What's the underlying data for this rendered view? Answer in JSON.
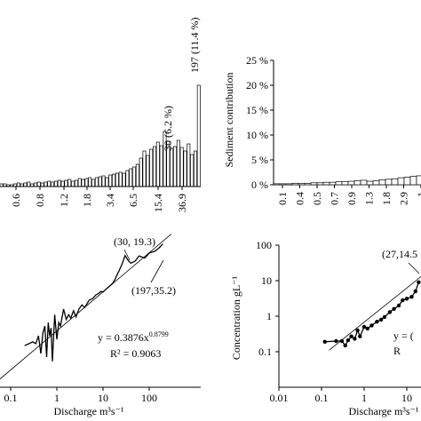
{
  "chart_data": [
    {
      "id": "a",
      "type": "bar",
      "x_tick_labels": [
        "0.6",
        "0.8",
        "1.2",
        "1.8",
        "3.4",
        "6.5",
        "15.4",
        "36.9"
      ],
      "peak_labels": [
        "30 (6.2 %)",
        "197 (11.4 %)"
      ],
      "values": [
        0.3,
        0.3,
        0.2,
        0.2,
        0.3,
        0.4,
        0.3,
        0.4,
        0.5,
        0.3,
        0.4,
        0.5,
        0.4,
        0.5,
        0.6,
        0.5,
        0.6,
        0.7,
        0.6,
        0.7,
        0.8,
        0.6,
        0.7,
        0.9,
        0.8,
        0.9,
        1.0,
        0.8,
        1.0,
        1.1,
        1.2,
        1.0,
        1.3,
        1.4,
        1.5,
        1.6,
        1.5,
        1.8,
        2.0,
        2.2,
        2.5,
        3.2,
        4.0,
        3.5,
        4.2,
        4.5,
        5.0,
        4.6,
        6.2,
        5.1,
        4.3,
        4.5,
        5.2,
        4.4,
        4.0,
        4.8,
        3.6,
        4.0,
        11.4
      ],
      "ylim": [
        0,
        12.5
      ]
    },
    {
      "id": "b",
      "type": "bar",
      "ylabel": "Sediment contribution",
      "y_tick_labels": [
        "0 %",
        "5 %",
        "10 %",
        "15 %",
        "20 %",
        "25 %"
      ],
      "x_tick_labels": [
        "0.1",
        "0.4",
        "0.5",
        "0.7",
        "0.9",
        "1.3",
        "1.8",
        "2.9",
        "1"
      ],
      "values": [
        0.2,
        0.2,
        0.2,
        0.3,
        0.3,
        0.3,
        0.4,
        0.4,
        0.5,
        0.5,
        0.6,
        0.6,
        0.7,
        0.8,
        0.9,
        0.7,
        0.8,
        1.0,
        1.1,
        1.2,
        1.4,
        1.5,
        1.7,
        1.8
      ],
      "ylim": [
        0,
        25
      ]
    },
    {
      "id": "c",
      "type": "line",
      "xlabel": "Discharge m³s⁻¹",
      "x_scale": "log",
      "y_scale": "log",
      "x_tick_labels": [
        "0.1",
        "1",
        "10",
        "100"
      ],
      "annotations": [
        "(30, 19.3)",
        "(197,35.2)"
      ],
      "equation": "y = 0.3876x",
      "equation_exponent": "0.8799",
      "r_squared": "R² = 0.9063",
      "fit": {
        "a": 0.3876,
        "b": 0.8799
      },
      "x": [
        0.2,
        0.25,
        0.3,
        0.35,
        0.4,
        0.45,
        0.5,
        0.55,
        0.6,
        0.65,
        0.7,
        0.75,
        0.8,
        0.9,
        1.0,
        1.1,
        1.2,
        1.4,
        1.6,
        1.8,
        2.0,
        2.3,
        2.6,
        3.0,
        3.5,
        4.0,
        4.5,
        5.0,
        6.0,
        7.0,
        8.0,
        9.0,
        10,
        12,
        14,
        16,
        18,
        20,
        22,
        25,
        27,
        30,
        35,
        40,
        50,
        60,
        80,
        100,
        130,
        160,
        197
      ],
      "y": [
        0.18,
        0.2,
        0.22,
        0.2,
        0.3,
        0.12,
        0.35,
        0.5,
        0.1,
        0.6,
        0.3,
        0.45,
        0.08,
        0.9,
        0.25,
        0.6,
        0.5,
        1.2,
        0.7,
        0.9,
        0.75,
        1.1,
        0.8,
        1.2,
        1.5,
        1.3,
        1.6,
        1.9,
        2.1,
        2.5,
        2.7,
        3.0,
        2.9,
        3.5,
        4.0,
        4.5,
        5.5,
        7.0,
        8.5,
        11.5,
        14.0,
        19.3,
        15.0,
        13.0,
        14.5,
        19.0,
        17.0,
        22.0,
        24.0,
        28.0,
        35.2
      ]
    },
    {
      "id": "d",
      "type": "line",
      "xlabel": "Discharge m³s⁻¹",
      "ylabel": "Concentration gL⁻¹",
      "x_scale": "log",
      "y_scale": "log",
      "x_tick_labels": [
        "0.01",
        "0.1",
        "1",
        "10"
      ],
      "y_tick_labels": [
        "0.1",
        "1",
        "10",
        "100"
      ],
      "xlim": [
        0.01,
        30
      ],
      "ylim": [
        0.01,
        100
      ],
      "annotations": [
        "(27,14.5"
      ],
      "equation_partial": "y = (",
      "r_squared_partial": "R",
      "x": [
        0.12,
        0.22,
        0.3,
        0.36,
        0.42,
        0.5,
        0.6,
        0.7,
        0.8,
        1.0,
        1.2,
        1.5,
        2.0,
        2.5,
        3.0,
        4.0,
        5.0,
        6.5,
        8.0,
        10,
        13,
        16,
        19
      ],
      "y": [
        0.19,
        0.2,
        0.2,
        0.15,
        0.21,
        0.27,
        0.23,
        0.4,
        0.27,
        0.5,
        0.45,
        0.55,
        0.7,
        0.8,
        0.95,
        1.3,
        1.6,
        2.0,
        2.8,
        3.1,
        3.5,
        5.0,
        9.0
      ],
      "fit_x": [
        0.15,
        25
      ],
      "fit_y": [
        0.11,
        15
      ]
    }
  ]
}
